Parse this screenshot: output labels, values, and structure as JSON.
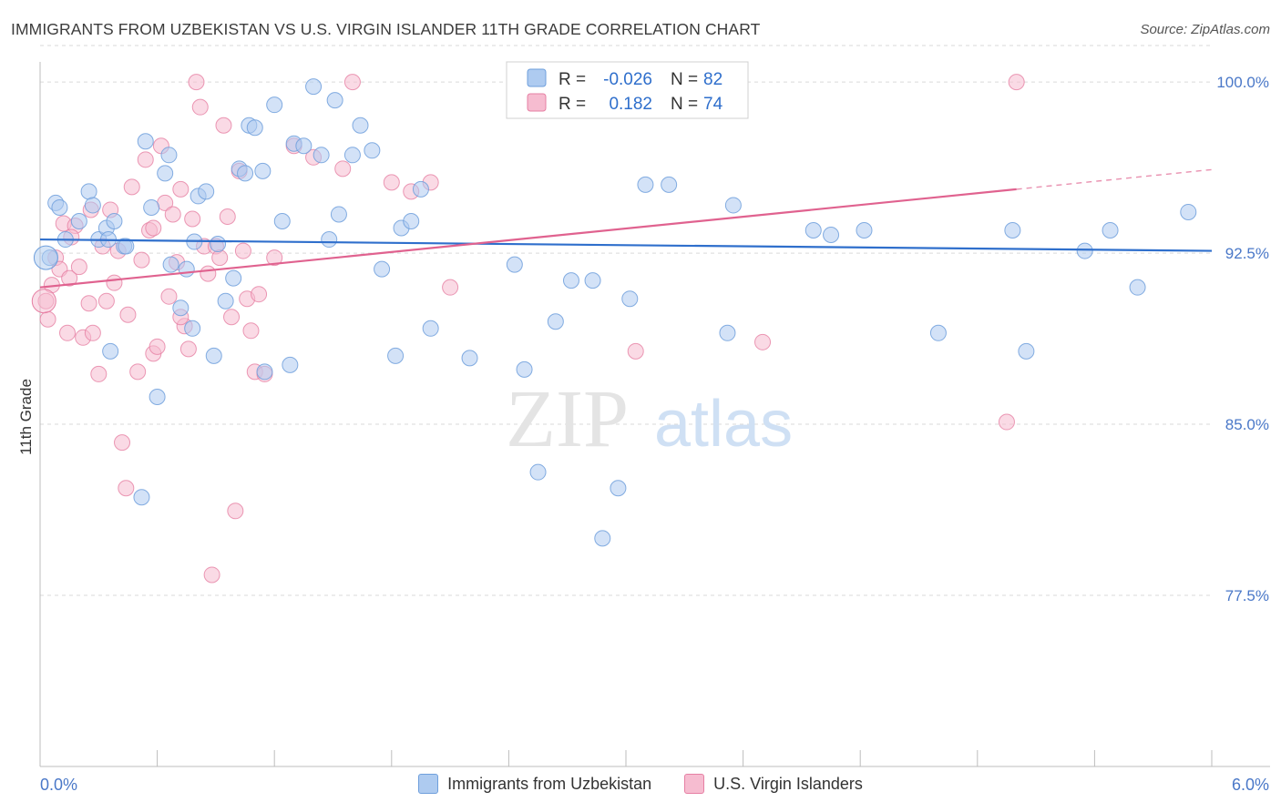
{
  "header": {
    "title": "IMMIGRANTS FROM UZBEKISTAN VS U.S. VIRGIN ISLANDER 11TH GRADE CORRELATION CHART",
    "source": "Source: ZipAtlas.com"
  },
  "watermark": {
    "zip": "ZIP",
    "atlas": "atlas"
  },
  "stats": [
    {
      "r_label": "R =",
      "r_value": "-0.026",
      "n_label": "N =",
      "n_value": "82"
    },
    {
      "r_label": "R =",
      "r_value": "0.182",
      "n_label": "N =",
      "n_value": "74"
    }
  ],
  "colors": {
    "blue_fill": "#aecbf0",
    "blue_stroke": "#6f9fdc",
    "blue_line": "#2f6fcc",
    "pink_fill": "#f6bcd0",
    "pink_stroke": "#e67fa3",
    "pink_line": "#e0628f",
    "axis_text": "#4a78c8",
    "grid": "#d9d9d9"
  },
  "chart_data": {
    "type": "scatter",
    "ylabel": "11th Grade",
    "xlim": [
      0.0,
      6.0
    ],
    "ylim": [
      70.0,
      101.6
    ],
    "x_tick_labels": [
      "0.0%",
      "6.0%"
    ],
    "y_ticks": [
      {
        "value": 100.0,
        "label": "100.0%"
      },
      {
        "value": 92.5,
        "label": "92.5%"
      },
      {
        "value": 85.0,
        "label": "85.0%"
      },
      {
        "value": 77.5,
        "label": "77.5%"
      }
    ],
    "legend": [
      "Immigrants from Uzbekistan",
      "U.S. Virgin Islanders"
    ],
    "series": [
      {
        "name": "Immigrants from Uzbekistan",
        "trend": {
          "x0": 0.0,
          "y0": 93.1,
          "x1": 6.0,
          "y1": 92.6
        },
        "points": [
          [
            0.08,
            94.7
          ],
          [
            0.05,
            92.3
          ],
          [
            0.1,
            94.5
          ],
          [
            0.13,
            93.1
          ],
          [
            0.2,
            93.9
          ],
          [
            0.25,
            95.2
          ],
          [
            0.27,
            94.6
          ],
          [
            0.3,
            93.1
          ],
          [
            0.34,
            93.6
          ],
          [
            0.38,
            93.9
          ],
          [
            0.35,
            93.1
          ],
          [
            0.43,
            92.8
          ],
          [
            0.44,
            92.8
          ],
          [
            0.54,
            97.4
          ],
          [
            0.57,
            94.5
          ],
          [
            0.64,
            96.0
          ],
          [
            0.66,
            96.8
          ],
          [
            0.67,
            92.0
          ],
          [
            0.72,
            90.1
          ],
          [
            0.75,
            91.8
          ],
          [
            0.79,
            93.0
          ],
          [
            0.81,
            95.0
          ],
          [
            0.85,
            95.2
          ],
          [
            0.91,
            92.9
          ],
          [
            0.95,
            90.4
          ],
          [
            0.99,
            91.4
          ],
          [
            1.02,
            96.2
          ],
          [
            1.05,
            96.0
          ],
          [
            1.07,
            98.1
          ],
          [
            1.1,
            98.0
          ],
          [
            1.14,
            96.1
          ],
          [
            1.15,
            87.3
          ],
          [
            1.2,
            99.0
          ],
          [
            1.24,
            93.9
          ],
          [
            1.3,
            97.3
          ],
          [
            1.35,
            97.2
          ],
          [
            1.4,
            99.8
          ],
          [
            1.44,
            96.8
          ],
          [
            1.48,
            93.1
          ],
          [
            1.51,
            99.2
          ],
          [
            1.53,
            94.2
          ],
          [
            1.6,
            96.8
          ],
          [
            1.64,
            98.1
          ],
          [
            1.7,
            97.0
          ],
          [
            1.75,
            91.8
          ],
          [
            1.82,
            88.0
          ],
          [
            1.85,
            93.6
          ],
          [
            1.9,
            93.9
          ],
          [
            1.95,
            95.3
          ],
          [
            2.0,
            89.2
          ],
          [
            2.2,
            87.9
          ],
          [
            2.43,
            92.0
          ],
          [
            2.48,
            87.4
          ],
          [
            2.55,
            82.9
          ],
          [
            2.64,
            89.5
          ],
          [
            2.7,
            99.6
          ],
          [
            2.72,
            91.3
          ],
          [
            2.83,
            91.3
          ],
          [
            2.88,
            80.0
          ],
          [
            2.96,
            82.2
          ],
          [
            3.02,
            90.5
          ],
          [
            3.1,
            95.5
          ],
          [
            3.22,
            95.5
          ],
          [
            3.46,
            100.0
          ],
          [
            3.55,
            94.6
          ],
          [
            3.96,
            93.5
          ],
          [
            4.05,
            93.3
          ],
          [
            4.22,
            93.5
          ],
          [
            4.6,
            89.0
          ],
          [
            4.98,
            93.5
          ],
          [
            5.05,
            88.2
          ],
          [
            5.35,
            92.6
          ],
          [
            5.48,
            93.5
          ],
          [
            5.62,
            91.0
          ],
          [
            5.88,
            94.3
          ],
          [
            0.78,
            89.2
          ],
          [
            0.89,
            88.0
          ],
          [
            0.6,
            86.2
          ],
          [
            0.52,
            81.8
          ],
          [
            0.36,
            88.2
          ],
          [
            1.28,
            87.6
          ],
          [
            3.52,
            89.0
          ]
        ]
      },
      {
        "name": "U.S. Virgin Islanders",
        "trend": {
          "x0": 0.0,
          "y0": 91.0,
          "x1": 5.0,
          "y1": 95.3
        },
        "points": [
          [
            0.03,
            90.4
          ],
          [
            0.04,
            89.6
          ],
          [
            0.06,
            91.1
          ],
          [
            0.08,
            92.3
          ],
          [
            0.1,
            91.8
          ],
          [
            0.12,
            93.8
          ],
          [
            0.15,
            91.4
          ],
          [
            0.18,
            93.7
          ],
          [
            0.2,
            91.9
          ],
          [
            0.22,
            88.8
          ],
          [
            0.25,
            90.3
          ],
          [
            0.27,
            89.0
          ],
          [
            0.3,
            87.2
          ],
          [
            0.32,
            92.8
          ],
          [
            0.34,
            90.4
          ],
          [
            0.36,
            94.4
          ],
          [
            0.38,
            91.2
          ],
          [
            0.4,
            92.6
          ],
          [
            0.42,
            84.2
          ],
          [
            0.45,
            89.8
          ],
          [
            0.47,
            95.4
          ],
          [
            0.5,
            87.3
          ],
          [
            0.52,
            92.2
          ],
          [
            0.54,
            96.6
          ],
          [
            0.56,
            93.5
          ],
          [
            0.58,
            88.1
          ],
          [
            0.6,
            88.4
          ],
          [
            0.62,
            97.2
          ],
          [
            0.64,
            94.7
          ],
          [
            0.66,
            90.6
          ],
          [
            0.68,
            94.2
          ],
          [
            0.7,
            92.1
          ],
          [
            0.72,
            95.3
          ],
          [
            0.74,
            89.3
          ],
          [
            0.76,
            88.3
          ],
          [
            0.78,
            94.0
          ],
          [
            0.8,
            100.0
          ],
          [
            0.82,
            98.9
          ],
          [
            0.84,
            92.8
          ],
          [
            0.86,
            91.6
          ],
          [
            0.88,
            78.4
          ],
          [
            0.9,
            92.8
          ],
          [
            0.92,
            92.3
          ],
          [
            0.94,
            98.1
          ],
          [
            0.96,
            94.1
          ],
          [
            0.98,
            89.7
          ],
          [
            1.0,
            81.2
          ],
          [
            1.02,
            96.1
          ],
          [
            1.04,
            92.6
          ],
          [
            1.06,
            90.5
          ],
          [
            1.08,
            89.1
          ],
          [
            1.1,
            87.3
          ],
          [
            1.12,
            90.7
          ],
          [
            1.15,
            87.2
          ],
          [
            1.2,
            92.3
          ],
          [
            1.3,
            97.2
          ],
          [
            1.4,
            96.7
          ],
          [
            1.55,
            96.2
          ],
          [
            1.8,
            95.6
          ],
          [
            1.9,
            95.2
          ],
          [
            2.1,
            91.0
          ],
          [
            2.8,
            99.0
          ],
          [
            3.05,
            88.2
          ],
          [
            3.7,
            88.6
          ],
          [
            4.95,
            85.1
          ],
          [
            5.0,
            100.0
          ],
          [
            0.16,
            93.2
          ],
          [
            0.26,
            94.4
          ],
          [
            0.44,
            82.2
          ],
          [
            0.58,
            93.6
          ],
          [
            0.72,
            89.7
          ],
          [
            1.6,
            100.0
          ],
          [
            2.0,
            95.6
          ],
          [
            0.14,
            89.0
          ]
        ]
      }
    ]
  }
}
